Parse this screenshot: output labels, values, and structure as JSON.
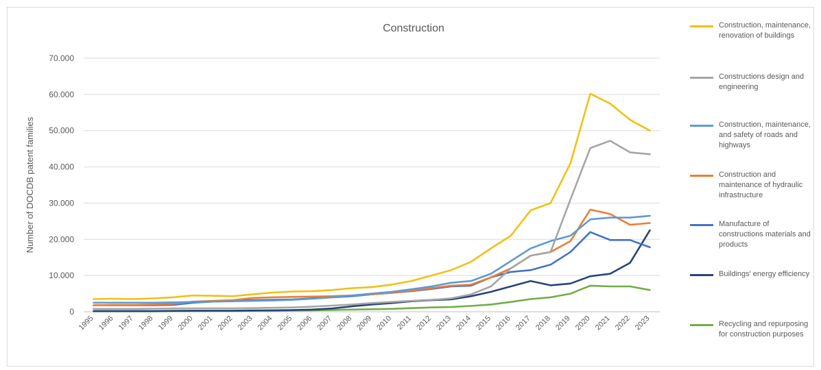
{
  "chart_data": {
    "type": "line",
    "title": "Construction",
    "xlabel": "",
    "ylabel": "Number of DOCDB patent families",
    "ylim": [
      0,
      70000
    ],
    "yticks": [
      0,
      10000,
      20000,
      30000,
      40000,
      50000,
      60000,
      70000
    ],
    "ytick_labels": [
      "0",
      "10.000",
      "20.000",
      "30.000",
      "40.000",
      "50.000",
      "60.000",
      "70.000"
    ],
    "grid": true,
    "legend_position": "right",
    "x": [
      "1995",
      "1996",
      "1997",
      "1998",
      "1999",
      "2000",
      "2001",
      "2002",
      "2003",
      "2004",
      "2005",
      "2006",
      "2007",
      "2008",
      "2009",
      "2010",
      "2011",
      "2012",
      "2013",
      "2014",
      "2015",
      "2016",
      "2017",
      "2018",
      "2019",
      "2020",
      "2021",
      "2022",
      "2023"
    ],
    "series": [
      {
        "name": "Construction, maintenance, renovation of buildings",
        "color": "#f2c012",
        "values": [
          3500,
          3600,
          3500,
          3700,
          4000,
          4500,
          4400,
          4300,
          4800,
          5300,
          5600,
          5700,
          6000,
          6500,
          6800,
          7500,
          8500,
          10000,
          11500,
          13800,
          17500,
          21000,
          28000,
          30000,
          41000,
          60200,
          57500,
          53000,
          50000
        ]
      },
      {
        "name": "Constructions design and engineering",
        "color": "#a5a5a5",
        "values": [
          800,
          800,
          800,
          850,
          900,
          950,
          950,
          950,
          1000,
          1100,
          1200,
          1400,
          1700,
          2000,
          2400,
          2700,
          3000,
          3300,
          3700,
          4800,
          7000,
          12000,
          15500,
          16500,
          31000,
          45200,
          47200,
          44000,
          43500
        ]
      },
      {
        "name": "Construction, maintenance, and safety of roads and highways",
        "color": "#5b9bd5",
        "values": [
          2500,
          2500,
          2500,
          2500,
          2600,
          2700,
          2800,
          2900,
          3000,
          3100,
          3300,
          3600,
          4000,
          4500,
          5000,
          5500,
          6200,
          7000,
          8000,
          8500,
          10500,
          14000,
          17500,
          19500,
          21000,
          25500,
          26000,
          26000,
          26500
        ]
      },
      {
        "name": "Construction and maintenance of hydraulic infrastructure",
        "color": "#ed7d31",
        "values": [
          1800,
          1900,
          1900,
          2000,
          2200,
          2800,
          3000,
          3200,
          3800,
          4000,
          4100,
          4200,
          4300,
          4500,
          4800,
          5200,
          5800,
          6500,
          7200,
          7500,
          9500,
          12000,
          15500,
          16500,
          19500,
          28200,
          27000,
          24000,
          24500
        ]
      },
      {
        "name": "Manufacture of constructions materials and products",
        "color": "#4472c4",
        "values": [
          1800,
          1800,
          1800,
          1800,
          1900,
          2500,
          2800,
          3000,
          3200,
          3300,
          3400,
          3700,
          4000,
          4300,
          4800,
          5200,
          5700,
          6300,
          7000,
          7200,
          9500,
          11000,
          11500,
          13000,
          16500,
          22000,
          19800,
          19800,
          17800
        ]
      },
      {
        "name": "Buildings' energy efficiency",
        "color": "#264478",
        "values": [
          200,
          200,
          200,
          200,
          250,
          300,
          300,
          300,
          350,
          400,
          450,
          600,
          900,
          1500,
          2000,
          2400,
          2900,
          3200,
          3400,
          4300,
          5500,
          7000,
          8500,
          7300,
          7800,
          9800,
          10500,
          13500,
          22500
        ]
      },
      {
        "name": "Recycling and repurposing for construction purposes",
        "color": "#70ad47",
        "values": [
          100,
          100,
          100,
          100,
          150,
          150,
          200,
          200,
          250,
          300,
          350,
          400,
          500,
          600,
          700,
          800,
          1000,
          1200,
          1300,
          1600,
          2000,
          2700,
          3500,
          4000,
          5000,
          7200,
          7000,
          7000,
          6000
        ]
      }
    ]
  }
}
